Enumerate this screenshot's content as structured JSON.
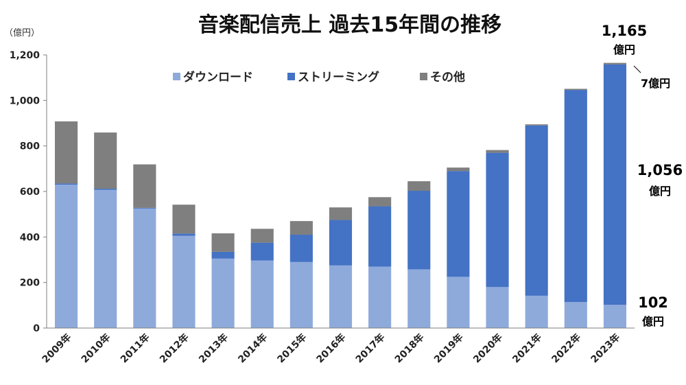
{
  "chart_data": {
    "type": "bar",
    "stacked": true,
    "title": "音楽配信売上 過去15年間の推移",
    "ylabel": "（億円）",
    "xlabel": "",
    "ylim": [
      0,
      1200
    ],
    "yticks": [
      "0",
      "200",
      "400",
      "600",
      "800",
      "1,000",
      "1,200"
    ],
    "ytick_values": [
      0,
      200,
      400,
      600,
      800,
      1000,
      1200
    ],
    "grid": false,
    "legend_position": "top-center",
    "categories": [
      "2009年",
      "2010年",
      "2011年",
      "2012年",
      "2013年",
      "2014年",
      "2015年",
      "2016年",
      "2017年",
      "2018年",
      "2019年",
      "2020年",
      "2021年",
      "2022年",
      "2023年"
    ],
    "series": [
      {
        "name": "ダウンロード",
        "color": "#8eaadb",
        "values": [
          630,
          607,
          525,
          405,
          305,
          297,
          290,
          275,
          270,
          258,
          225,
          180,
          142,
          114,
          102
        ]
      },
      {
        "name": "ストリーミング",
        "color": "#4472c4",
        "values": [
          5,
          5,
          3,
          10,
          30,
          78,
          120,
          200,
          265,
          345,
          465,
          590,
          748,
          932,
          1056
        ]
      },
      {
        "name": "その他",
        "color": "#7f7f7f",
        "values": [
          273,
          247,
          191,
          127,
          81,
          61,
          60,
          55,
          40,
          42,
          15,
          12,
          5,
          5,
          7
        ]
      }
    ],
    "annotations": {
      "total_value": "1,165",
      "total_unit": "億円",
      "other_label": "7億円",
      "streaming_value": "1,056",
      "streaming_unit": "億円",
      "download_value": "102",
      "download_unit": "億円"
    }
  }
}
